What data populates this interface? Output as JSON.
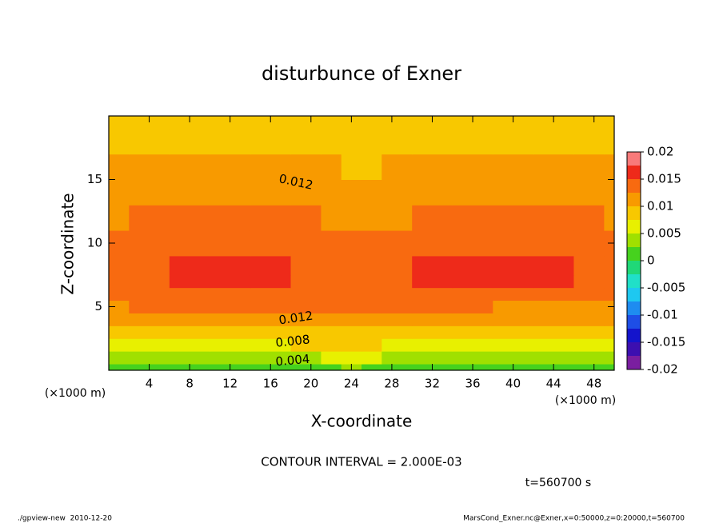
{
  "chart_data": {
    "type": "contour",
    "title": "disturbunce of Exner",
    "xlabel": "X-coordinate",
    "ylabel": "Z-coordinate",
    "x_unit": "(×1000 m)",
    "xlim": [
      0,
      50
    ],
    "ylim": [
      0,
      20
    ],
    "xticks": [
      4,
      8,
      12,
      16,
      20,
      24,
      28,
      32,
      36,
      40,
      44,
      48
    ],
    "yticks": [
      5,
      10,
      15
    ],
    "x": [
      0,
      4,
      8,
      12,
      16,
      20,
      22,
      24,
      26,
      28,
      32,
      36,
      40,
      44,
      48,
      50
    ],
    "z": [
      0,
      1,
      2,
      3,
      4,
      5,
      6,
      7,
      8,
      10,
      12,
      14,
      16,
      18,
      20
    ],
    "values": [
      [
        0.0015,
        0.0015,
        0.0015,
        0.0016,
        0.0018,
        0.0022,
        0.0024,
        0.0025,
        0.0024,
        0.0022,
        0.0018,
        0.0016,
        0.0015,
        0.0015,
        0.0015,
        0.0015
      ],
      [
        0.004,
        0.004,
        0.004,
        0.0042,
        0.0045,
        0.0048,
        0.005,
        0.005,
        0.005,
        0.0048,
        0.0044,
        0.0042,
        0.004,
        0.004,
        0.004,
        0.004
      ],
      [
        0.0065,
        0.0065,
        0.0066,
        0.0068,
        0.0072,
        0.0076,
        0.0078,
        0.0078,
        0.0077,
        0.0074,
        0.007,
        0.0067,
        0.0066,
        0.0065,
        0.0065,
        0.0065
      ],
      [
        0.0085,
        0.0086,
        0.0087,
        0.009,
        0.0093,
        0.0097,
        0.0098,
        0.0098,
        0.0097,
        0.0094,
        0.009,
        0.0087,
        0.0086,
        0.0085,
        0.0085,
        0.0085
      ],
      [
        0.0105,
        0.0106,
        0.0108,
        0.011,
        0.0113,
        0.0117,
        0.0118,
        0.0118,
        0.0117,
        0.0114,
        0.011,
        0.0107,
        0.0106,
        0.0105,
        0.0105,
        0.0105
      ],
      [
        0.0123,
        0.0125,
        0.0127,
        0.0129,
        0.013,
        0.0131,
        0.0131,
        0.013,
        0.013,
        0.0129,
        0.0127,
        0.0125,
        0.0124,
        0.0124,
        0.0123,
        0.0123
      ],
      [
        0.0138,
        0.0143,
        0.0147,
        0.0149,
        0.0148,
        0.0143,
        0.0139,
        0.0138,
        0.0139,
        0.0143,
        0.0147,
        0.0149,
        0.0149,
        0.0147,
        0.0143,
        0.0139
      ],
      [
        0.0142,
        0.0148,
        0.0153,
        0.0155,
        0.0154,
        0.0147,
        0.014,
        0.0138,
        0.014,
        0.0147,
        0.0153,
        0.0155,
        0.0155,
        0.0153,
        0.0148,
        0.0143
      ],
      [
        0.0141,
        0.0147,
        0.0152,
        0.0154,
        0.0153,
        0.0146,
        0.014,
        0.0138,
        0.014,
        0.0146,
        0.0152,
        0.0154,
        0.0154,
        0.0152,
        0.0147,
        0.0142
      ],
      [
        0.0136,
        0.014,
        0.0144,
        0.0146,
        0.0144,
        0.0138,
        0.0134,
        0.0132,
        0.0133,
        0.0136,
        0.014,
        0.0143,
        0.0143,
        0.0141,
        0.0138,
        0.0136
      ],
      [
        0.0124,
        0.0126,
        0.0128,
        0.013,
        0.0129,
        0.0126,
        0.0123,
        0.0122,
        0.0122,
        0.0124,
        0.0126,
        0.0127,
        0.0127,
        0.0126,
        0.0125,
        0.0124
      ],
      [
        0.0116,
        0.0118,
        0.012,
        0.0121,
        0.012,
        0.0117,
        0.0114,
        0.0112,
        0.0112,
        0.0114,
        0.0117,
        0.0119,
        0.0119,
        0.0118,
        0.0117,
        0.0116
      ],
      [
        0.0104,
        0.0106,
        0.0108,
        0.0109,
        0.0107,
        0.0103,
        0.01,
        0.0098,
        0.0098,
        0.01,
        0.0104,
        0.0106,
        0.0106,
        0.0105,
        0.0104,
        0.0104
      ],
      [
        0.0092,
        0.0093,
        0.0094,
        0.0095,
        0.0094,
        0.0091,
        0.0089,
        0.0088,
        0.0088,
        0.0089,
        0.0091,
        0.0093,
        0.0093,
        0.0093,
        0.0092,
        0.0092
      ],
      [
        0.0082,
        0.0082,
        0.0083,
        0.0083,
        0.0083,
        0.0082,
        0.0081,
        0.008,
        0.008,
        0.0081,
        0.0082,
        0.0082,
        0.0082,
        0.0082,
        0.0082,
        0.0082
      ]
    ],
    "levels": [
      -0.02,
      -0.0175,
      -0.015,
      -0.0125,
      -0.01,
      -0.0075,
      -0.005,
      -0.0025,
      0,
      0.0025,
      0.005,
      0.0075,
      0.01,
      0.0125,
      0.015,
      0.0175,
      0.02
    ],
    "colors": [
      "#7a1ea0",
      "#3c0fb0",
      "#1414cc",
      "#1e4ee6",
      "#1e8cf0",
      "#1ec8f0",
      "#20e0c8",
      "#20d878",
      "#46d21e",
      "#a0e000",
      "#e8f000",
      "#f8c800",
      "#f89a00",
      "#f86a10",
      "#ee2a1a",
      "#f87a7a"
    ],
    "colorbar_ticks": [
      0.02,
      0.015,
      0.01,
      0.005,
      0,
      -0.005,
      -0.01,
      -0.015,
      -0.02
    ],
    "contour_labels": [
      0.012,
      0.012,
      0.008,
      0.004
    ],
    "contour_interval_text": "CONTOUR INTERVAL = 2.000E-03",
    "time_text": "t=560700 s",
    "footer_left": "./gpview-new  2010-12-20",
    "footer_right": "MarsCond_Exner.nc@Exner,x=0:50000,z=0:20000,t=560700"
  }
}
